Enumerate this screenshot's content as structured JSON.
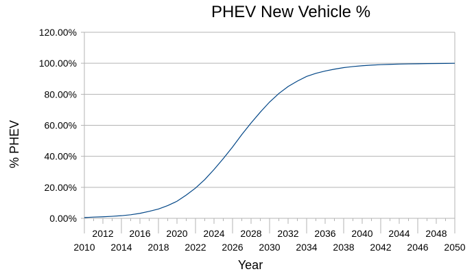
{
  "chart_data": {
    "type": "line",
    "title": "PHEV New Vehicle %",
    "xlabel": "Year",
    "ylabel": "% PHEV",
    "xlim": [
      2010,
      2050
    ],
    "ylim": [
      0,
      120
    ],
    "x_ticks": [
      "2010",
      "2012",
      "2014",
      "2016",
      "2018",
      "2020",
      "2022",
      "2024",
      "2026",
      "2028",
      "2030",
      "2032",
      "2034",
      "2036",
      "2038",
      "2040",
      "2042",
      "2044",
      "2046",
      "2048",
      "2050"
    ],
    "y_ticks": [
      "0.00%",
      "20.00%",
      "40.00%",
      "60.00%",
      "80.00%",
      "100.00%",
      "120.00%"
    ],
    "grid": "horizontal",
    "legend": "none",
    "series": [
      {
        "color": "#004586",
        "x": [
          2010,
          2011,
          2012,
          2013,
          2014,
          2015,
          2016,
          2017,
          2018,
          2019,
          2020,
          2021,
          2022,
          2023,
          2024,
          2025,
          2026,
          2027,
          2028,
          2029,
          2030,
          2031,
          2032,
          2033,
          2034,
          2035,
          2036,
          2037,
          2038,
          2039,
          2040,
          2041,
          2042,
          2043,
          2044,
          2045,
          2046,
          2047,
          2048,
          2049,
          2050
        ],
        "values": [
          0.5,
          0.8,
          1.0,
          1.3,
          1.7,
          2.3,
          3.2,
          4.5,
          6.0,
          8.2,
          11.0,
          15.0,
          19.5,
          25.0,
          31.5,
          38.5,
          46.0,
          54.0,
          61.5,
          68.5,
          75.0,
          80.5,
          85.0,
          88.5,
          91.5,
          93.5,
          95.0,
          96.2,
          97.2,
          97.9,
          98.4,
          98.8,
          99.1,
          99.3,
          99.5,
          99.6,
          99.7,
          99.8,
          99.85,
          99.9,
          100.0
        ]
      }
    ]
  }
}
